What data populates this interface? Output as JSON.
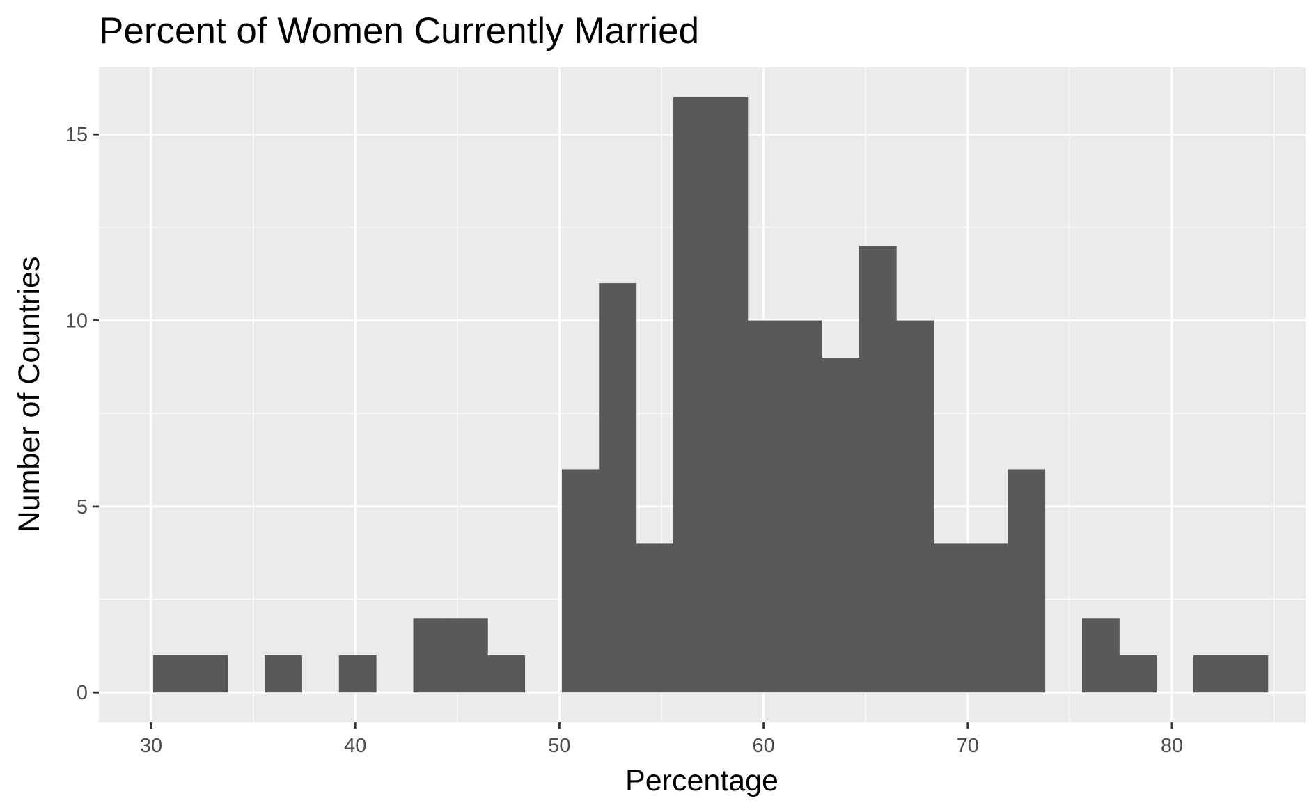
{
  "chart_data": {
    "type": "histogram",
    "title": "Percent of Women Currently Married",
    "xlabel": "Percentage",
    "ylabel": "Number of Countries",
    "xlim": [
      27.44,
      86.55
    ],
    "ylim": [
      -0.8,
      16.8
    ],
    "xticks": [
      "30",
      "40",
      "50",
      "60",
      "70",
      "80"
    ],
    "yticks": [
      "0",
      "5",
      "10",
      "15"
    ],
    "xtick_values": [
      30,
      40,
      50,
      60,
      70,
      80
    ],
    "ytick_values": [
      0,
      5,
      10,
      15
    ],
    "x_minor_gridlines": [
      35,
      45,
      55,
      65,
      75,
      85
    ],
    "y_minor_gridlines": [
      2.5,
      7.5,
      12.5
    ],
    "bin_width": 1.82,
    "bins": [
      {
        "start": 30.1,
        "count": 1
      },
      {
        "start": 31.92,
        "count": 1
      },
      {
        "start": 33.74,
        "count": 0
      },
      {
        "start": 35.56,
        "count": 1
      },
      {
        "start": 37.38,
        "count": 0
      },
      {
        "start": 39.2,
        "count": 1
      },
      {
        "start": 41.02,
        "count": 0
      },
      {
        "start": 42.84,
        "count": 2
      },
      {
        "start": 44.66,
        "count": 2
      },
      {
        "start": 46.48,
        "count": 1
      },
      {
        "start": 48.3,
        "count": 0
      },
      {
        "start": 50.12,
        "count": 6
      },
      {
        "start": 51.94,
        "count": 11
      },
      {
        "start": 53.76,
        "count": 4
      },
      {
        "start": 55.58,
        "count": 16
      },
      {
        "start": 57.4,
        "count": 16
      },
      {
        "start": 59.22,
        "count": 10
      },
      {
        "start": 61.04,
        "count": 10
      },
      {
        "start": 62.86,
        "count": 9
      },
      {
        "start": 64.68,
        "count": 12
      },
      {
        "start": 66.5,
        "count": 10
      },
      {
        "start": 68.32,
        "count": 4
      },
      {
        "start": 70.14,
        "count": 4
      },
      {
        "start": 71.96,
        "count": 6
      },
      {
        "start": 73.78,
        "count": 0
      },
      {
        "start": 75.6,
        "count": 2
      },
      {
        "start": 77.42,
        "count": 1
      },
      {
        "start": 79.24,
        "count": 0
      },
      {
        "start": 81.06,
        "count": 1
      },
      {
        "start": 82.88,
        "count": 1
      }
    ],
    "grid": true,
    "colors": {
      "panel_background": "#ebebeb",
      "gridline": "#ffffff",
      "bar_fill": "#595959",
      "tick_mark": "#333333"
    }
  }
}
